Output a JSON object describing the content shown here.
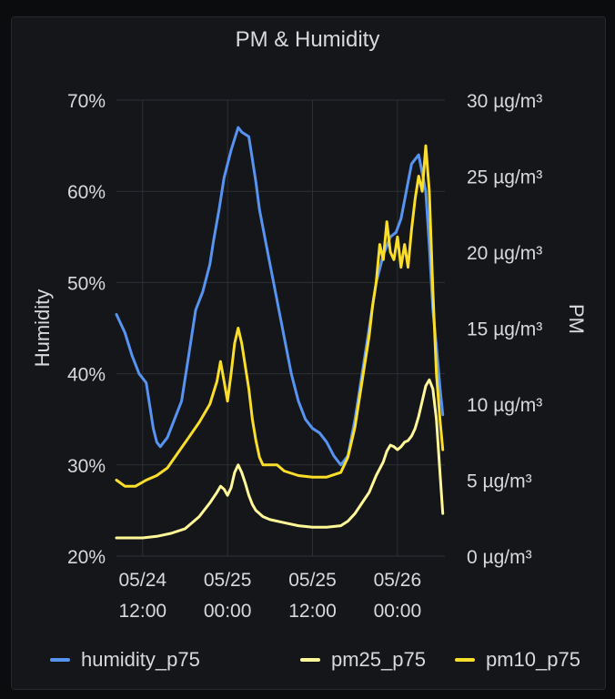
{
  "panel": {
    "title": "PM & Humidity"
  },
  "chart_data": {
    "type": "line",
    "title": "PM & Humidity",
    "y_left": {
      "label": "Humidity",
      "unit": "%",
      "lim": [
        20,
        70
      ],
      "ticks": [
        "70%",
        "60%",
        "50%",
        "40%",
        "30%",
        "20%"
      ]
    },
    "y_right": {
      "label": "PM",
      "unit": "µg/m³",
      "lim": [
        0,
        30
      ],
      "ticks": [
        "30 µg/m³",
        "25 µg/m³",
        "20 µg/m³",
        "15 µg/m³",
        "10 µg/m³",
        "5 µg/m³",
        "0 µg/m³"
      ]
    },
    "x_ticks": [
      {
        "t": 12,
        "date": "05/24",
        "time": "12:00"
      },
      {
        "t": 24,
        "date": "05/25",
        "time": "00:00"
      },
      {
        "t": 36,
        "date": "05/25",
        "time": "12:00"
      },
      {
        "t": 48,
        "date": "05/26",
        "time": "00:00"
      }
    ],
    "x_range_hours": [
      8.3,
      54.7
    ],
    "grid": true,
    "legend": "bottom",
    "series": [
      {
        "name": "humidity_p75",
        "axis": "left",
        "color": "#5794f2",
        "x": [
          8.3,
          9.5,
          10.5,
          11.5,
          12.5,
          13.5,
          14,
          14.5,
          15.5,
          16.5,
          17.5,
          18.5,
          19.5,
          20.5,
          21.5,
          22,
          22.8,
          23.5,
          24.5,
          25.5,
          26,
          27,
          27.5,
          28,
          28.5,
          29.5,
          30.5,
          31.5,
          32.5,
          33,
          34,
          35,
          36,
          37,
          38,
          39,
          40,
          41,
          42,
          43,
          44,
          45,
          46,
          47,
          47.8,
          48.5,
          49,
          49.5,
          50,
          51,
          51.5,
          52,
          52.5,
          53,
          53.5,
          54,
          54.4
        ],
        "y": [
          46.5,
          44.5,
          42,
          40,
          39,
          34,
          32.5,
          32,
          33,
          35,
          37,
          42,
          47,
          49,
          52,
          54.5,
          58,
          61.5,
          64.5,
          67,
          66.5,
          66,
          63.5,
          61,
          58,
          54,
          50,
          46,
          42,
          40,
          37,
          35,
          34,
          33.5,
          32.5,
          31,
          30,
          31,
          35,
          40,
          45,
          50,
          53,
          55,
          55.5,
          57,
          59,
          61,
          63,
          64,
          62,
          60,
          54,
          47,
          43,
          38.5,
          35.5
        ]
      },
      {
        "name": "pm25_p75",
        "axis": "right",
        "color": "#fff899",
        "x": [
          8.3,
          10,
          12,
          14,
          16,
          18,
          20,
          21.5,
          22.5,
          23,
          23.5,
          24,
          24.5,
          25,
          25.5,
          26,
          26.5,
          27,
          27.5,
          28,
          28.5,
          29,
          30,
          32,
          34,
          36,
          38,
          40,
          41,
          42,
          43,
          44,
          45,
          46,
          46.5,
          47,
          47.5,
          48,
          48.5,
          49,
          49.5,
          50,
          50.5,
          51,
          51.5,
          52,
          52.5,
          53,
          53.5,
          54,
          54.4
        ],
        "y": [
          1.2,
          1.2,
          1.2,
          1.3,
          1.5,
          1.8,
          2.6,
          3.5,
          4.2,
          4.6,
          4.4,
          4.0,
          4.5,
          5.5,
          6.0,
          5.5,
          4.8,
          4.0,
          3.4,
          3.0,
          2.8,
          2.6,
          2.4,
          2.2,
          2.0,
          1.9,
          1.9,
          2.0,
          2.3,
          2.8,
          3.5,
          4.2,
          5.3,
          6.2,
          6.9,
          7.3,
          7.2,
          7.0,
          7.2,
          7.5,
          7.6,
          7.9,
          8.4,
          9.2,
          10.2,
          11.2,
          11.6,
          11.0,
          9.0,
          5.5,
          2.8
        ]
      },
      {
        "name": "pm10_p75",
        "axis": "right",
        "color": "#fade2a",
        "x": [
          8.3,
          9.5,
          11,
          12.5,
          14,
          15.5,
          17,
          18.5,
          20,
          21.5,
          22.5,
          23,
          23.5,
          24,
          24.5,
          25,
          25.5,
          26,
          26.5,
          27,
          27.5,
          28,
          28.5,
          29,
          30,
          31,
          32,
          34,
          36,
          38,
          40,
          41,
          42,
          43,
          44,
          44.5,
          45,
          45.5,
          46,
          46.5,
          47,
          47.5,
          48,
          48.5,
          49,
          49.5,
          50,
          50.5,
          51,
          51.5,
          52,
          52.5,
          53,
          53.5,
          54,
          54.4
        ],
        "y": [
          5,
          4.6,
          4.6,
          5,
          5.3,
          5.8,
          6.8,
          7.8,
          8.8,
          10.0,
          11.5,
          12.8,
          11.5,
          10.2,
          12.0,
          14.0,
          15.0,
          14.0,
          12.5,
          11.0,
          9.0,
          7.6,
          6.5,
          6.0,
          6.0,
          6.0,
          5.6,
          5.3,
          5.2,
          5.2,
          5.5,
          6.5,
          8.5,
          11.5,
          14.5,
          16.5,
          18.0,
          20.5,
          19.5,
          22.0,
          20.0,
          19.5,
          21.0,
          19.0,
          20.5,
          19.0,
          21.5,
          23.5,
          25.0,
          24.0,
          27.0,
          24.0,
          17.5,
          12.0,
          9.0,
          7.0
        ]
      }
    ]
  }
}
